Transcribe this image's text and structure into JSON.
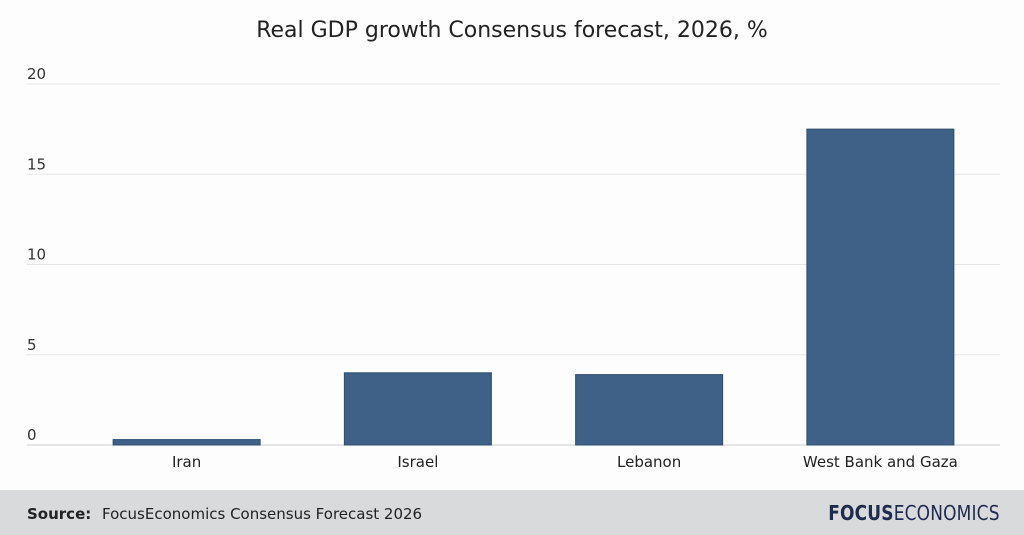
{
  "chart_data": {
    "type": "bar",
    "title": "Real GDP growth Consensus forecast, 2026, %",
    "categories": [
      "Iran",
      "Israel",
      "Lebanon",
      "West Bank and Gaza"
    ],
    "values": [
      0.3,
      4.0,
      3.9,
      17.5
    ],
    "xlabel": "",
    "ylabel": "",
    "ylim": [
      0,
      20
    ],
    "yticks": [
      0,
      5,
      10,
      15,
      20
    ],
    "ytick_labels": [
      "0",
      "5",
      "10",
      "15",
      "20"
    ],
    "grid": true,
    "bar_color": "#3f6188"
  },
  "footer": {
    "source_label": "Source:",
    "source_text": "FocusEconomics Consensus Forecast 2026",
    "logo_bold": "FOCUS",
    "logo_light": "ECONOMICS"
  }
}
